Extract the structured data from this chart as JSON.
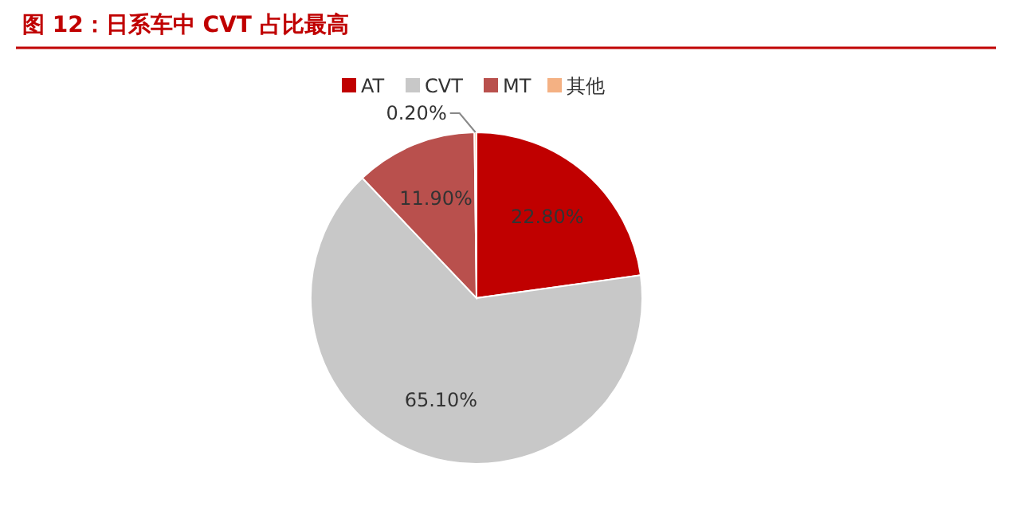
{
  "chart_data": {
    "type": "pie",
    "title": "图 12：日系车中 CVT 占比最高",
    "categories": [
      "AT",
      "CVT",
      "MT",
      "其他"
    ],
    "values": [
      22.8,
      65.1,
      11.9,
      0.2
    ],
    "value_labels": [
      "22.80%",
      "65.10%",
      "11.90%",
      "0.20%"
    ],
    "colors": [
      "#c00000",
      "#c8c8c8",
      "#b9504d",
      "#f4b183"
    ],
    "legend": "top"
  }
}
